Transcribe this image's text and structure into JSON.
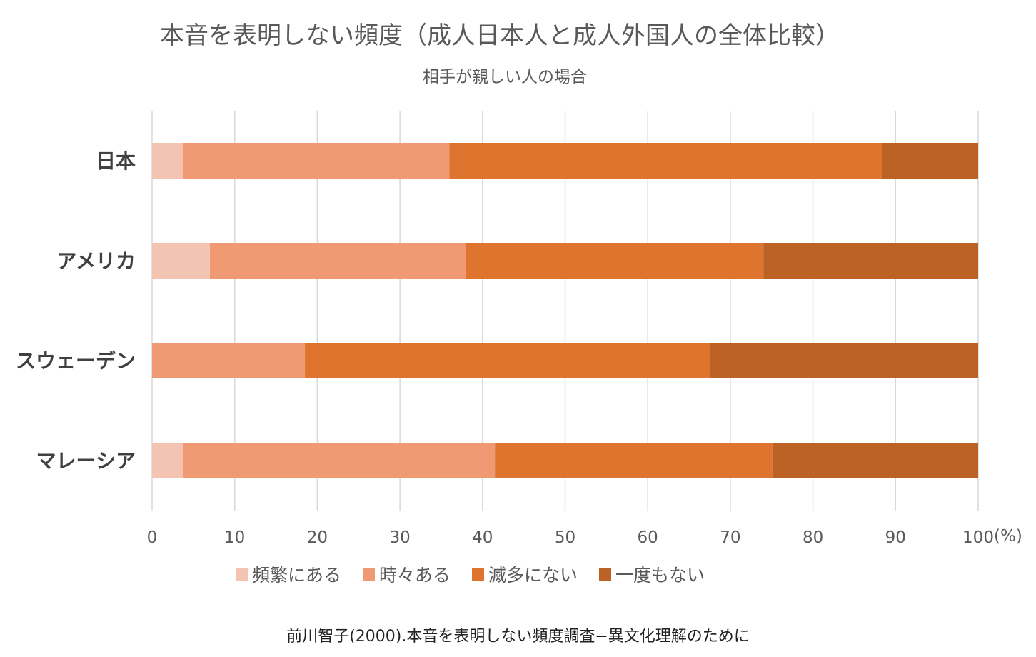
{
  "chart_data": {
    "type": "bar",
    "orientation": "horizontal",
    "stacked": true,
    "title": "本音を表明しない頻度（成人日本人と成人外国人の全体比較）",
    "subtitle": "相手が親しい人の場合",
    "categories": [
      "日本",
      "アメリカ",
      "スウェーデン",
      "マレーシア"
    ],
    "series": [
      {
        "name": "頻繁にある",
        "color": "#F4C4B2",
        "values": [
          3.7,
          7.0,
          0,
          3.7
        ]
      },
      {
        "name": "時々ある",
        "color": "#EF9A72",
        "values": [
          32.3,
          31.0,
          18.5,
          37.8
        ]
      },
      {
        "name": "滅多にない",
        "color": "#DE742E",
        "values": [
          52.4,
          36.0,
          49.0,
          33.6
        ]
      },
      {
        "name": "一度もない",
        "color": "#BB6224",
        "values": [
          11.6,
          26.0,
          32.5,
          24.9
        ]
      }
    ],
    "xlim": [
      0,
      100
    ],
    "xticks": [
      "0",
      "10",
      "20",
      "30",
      "40",
      "50",
      "60",
      "70",
      "80",
      "90",
      "100"
    ],
    "xunit": "(%)",
    "grid": true,
    "legend": "bottom"
  },
  "source": "前川智子(2000).本音を表明しない頻度調査−異文化理解のために"
}
